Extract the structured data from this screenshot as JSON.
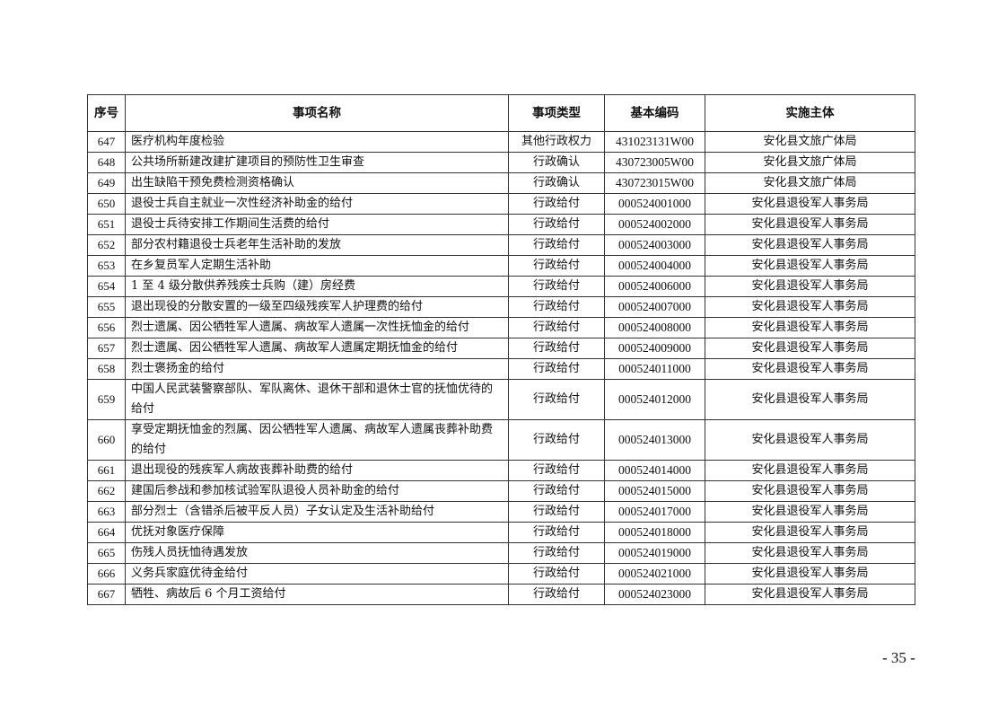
{
  "headers": [
    "序号",
    "事项名称",
    "事项类型",
    "基本编码",
    "实施主体"
  ],
  "rows": [
    [
      "647",
      "医疗机构年度检验",
      "其他行政权力",
      "431023131W00",
      "安化县文旅广体局"
    ],
    [
      "648",
      "公共场所新建改建扩建项目的预防性卫生审查",
      "行政确认",
      "430723005W00",
      "安化县文旅广体局"
    ],
    [
      "649",
      "出生缺陷干预免费检测资格确认",
      "行政确认",
      "430723015W00",
      "安化县文旅广体局"
    ],
    [
      "650",
      "退役士兵自主就业一次性经济补助金的给付",
      "行政给付",
      "000524001000",
      "安化县退役军人事务局"
    ],
    [
      "651",
      "退役士兵待安排工作期间生活费的给付",
      "行政给付",
      "000524002000",
      "安化县退役军人事务局"
    ],
    [
      "652",
      "部分农村籍退役士兵老年生活补助的发放",
      "行政给付",
      "000524003000",
      "安化县退役军人事务局"
    ],
    [
      "653",
      "在乡复员军人定期生活补助",
      "行政给付",
      "000524004000",
      "安化县退役军人事务局"
    ],
    [
      "654",
      "1 至 4 级分散供养残疾士兵购（建）房经费",
      "行政给付",
      "000524006000",
      "安化县退役军人事务局"
    ],
    [
      "655",
      "退出现役的分散安置的一级至四级残疾军人护理费的给付",
      "行政给付",
      "000524007000",
      "安化县退役军人事务局"
    ],
    [
      "656",
      "烈士遗属、因公牺牲军人遗属、病故军人遗属一次性抚恤金的给付",
      "行政给付",
      "000524008000",
      "安化县退役军人事务局"
    ],
    [
      "657",
      "烈士遗属、因公牺牲军人遗属、病故军人遗属定期抚恤金的给付",
      "行政给付",
      "000524009000",
      "安化县退役军人事务局"
    ],
    [
      "658",
      "烈士褒扬金的给付",
      "行政给付",
      "000524011000",
      "安化县退役军人事务局"
    ],
    [
      "659",
      "中国人民武装警察部队、军队离休、退休干部和退休士官的抚恤优待的给付",
      "行政给付",
      "000524012000",
      "安化县退役军人事务局"
    ],
    [
      "660",
      "享受定期抚恤金的烈属、因公牺牲军人遗属、病故军人遗属丧葬补助费的给付",
      "行政给付",
      "000524013000",
      "安化县退役军人事务局"
    ],
    [
      "661",
      "退出现役的残疾军人病故丧葬补助费的给付",
      "行政给付",
      "000524014000",
      "安化县退役军人事务局"
    ],
    [
      "662",
      "建国后参战和参加核试验军队退役人员补助金的给付",
      "行政给付",
      "000524015000",
      "安化县退役军人事务局"
    ],
    [
      "663",
      "部分烈士（含错杀后被平反人员）子女认定及生活补助给付",
      "行政给付",
      "000524017000",
      "安化县退役军人事务局"
    ],
    [
      "664",
      "优抚对象医疗保障",
      "行政给付",
      "000524018000",
      "安化县退役军人事务局"
    ],
    [
      "665",
      "伤残人员抚恤待遇发放",
      "行政给付",
      "000524019000",
      "安化县退役军人事务局"
    ],
    [
      "666",
      "义务兵家庭优待金给付",
      "行政给付",
      "000524021000",
      "安化县退役军人事务局"
    ],
    [
      "667",
      "牺牲、病故后 6 个月工资给付",
      "行政给付",
      "000524023000",
      "安化县退役军人事务局"
    ]
  ],
  "page_number": "- 35 -"
}
